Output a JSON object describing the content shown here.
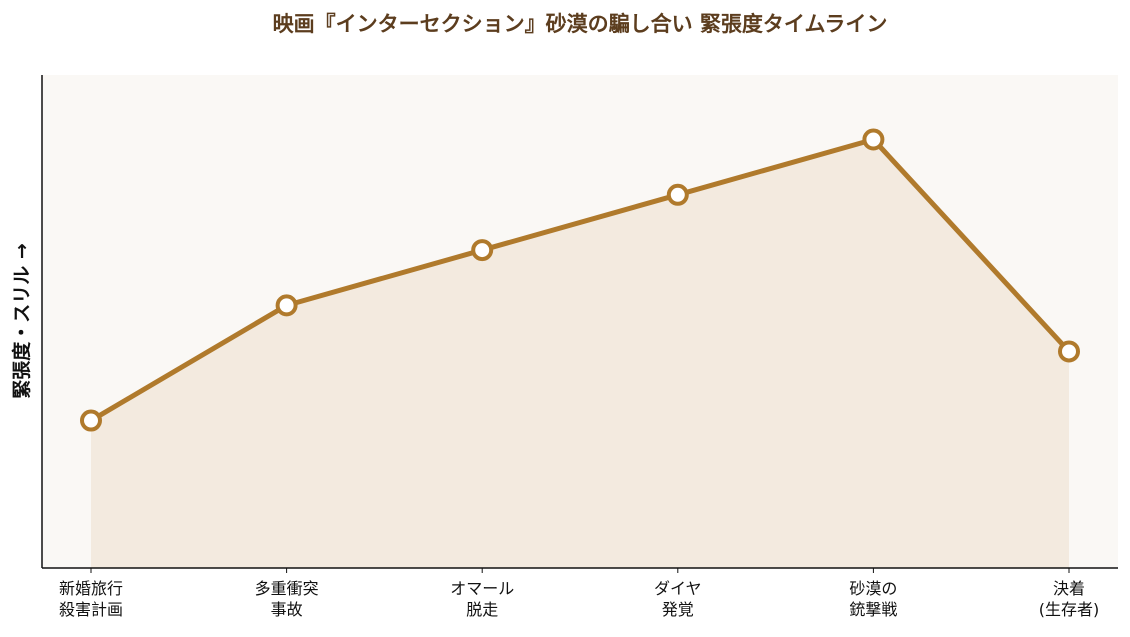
{
  "chart_data": {
    "type": "line",
    "title": "映画『インターセクション』砂漠の騙し合い 緊張度タイムライン",
    "xlabel": "",
    "ylabel": "緊張度・スリル →",
    "categories": [
      [
        "新婚旅行",
        "殺害計画"
      ],
      [
        "多重衝突",
        "事故"
      ],
      [
        "オマール",
        "脱走"
      ],
      [
        "ダイヤ",
        "発覚"
      ],
      [
        "砂漠の",
        "銃撃戦"
      ],
      [
        "決着",
        "(生存者)"
      ]
    ],
    "series": [
      {
        "values": [
          3.5,
          6.0,
          7.2,
          8.4,
          9.6,
          5.0
        ]
      }
    ],
    "ylim": [
      0.3,
      11.0
    ],
    "y_ticks_shown": false,
    "grid": false,
    "area_fill": true,
    "colors": {
      "title": "#5c3d1e",
      "line": "#b07a2c",
      "marker_fill": "#ffffff",
      "area": "#f3eadf",
      "plot_background": "#faf8f5",
      "axis": "#111111"
    }
  }
}
